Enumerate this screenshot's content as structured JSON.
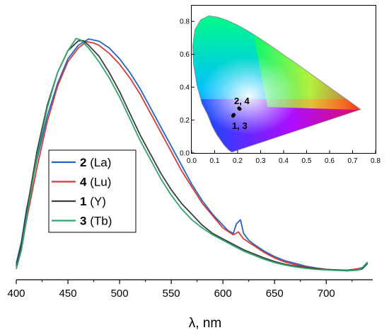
{
  "chart_data": [
    {
      "type": "line",
      "title": "",
      "xlabel": "λ, nm",
      "ylabel": "",
      "xlim": [
        400,
        745
      ],
      "x_ticks": [
        "400",
        "450",
        "500",
        "550",
        "600",
        "650",
        "700"
      ],
      "grid": false,
      "legend": "left, middle",
      "series": [
        {
          "name_num": "2",
          "name_rest": " (La)",
          "color": "#2563c4",
          "points": [
            [
              400,
              0.06
            ],
            [
              405,
              0.14
            ],
            [
              410,
              0.26
            ],
            [
              420,
              0.44
            ],
            [
              430,
              0.6
            ],
            [
              440,
              0.72
            ],
            [
              450,
              0.81
            ],
            [
              460,
              0.86
            ],
            [
              470,
              0.883
            ],
            [
              480,
              0.875
            ],
            [
              490,
              0.85
            ],
            [
              500,
              0.81
            ],
            [
              510,
              0.76
            ],
            [
              520,
              0.7
            ],
            [
              530,
              0.63
            ],
            [
              540,
              0.56
            ],
            [
              550,
              0.49
            ],
            [
              560,
              0.42
            ],
            [
              570,
              0.35
            ],
            [
              580,
              0.29
            ],
            [
              590,
              0.24
            ],
            [
              600,
              0.2
            ],
            [
              605,
              0.18
            ],
            [
              610,
              0.17
            ],
            [
              613,
              0.205
            ],
            [
              617,
              0.22
            ],
            [
              620,
              0.17
            ],
            [
              625,
              0.145
            ],
            [
              630,
              0.13
            ],
            [
              640,
              0.105
            ],
            [
              650,
              0.085
            ],
            [
              660,
              0.07
            ],
            [
              670,
              0.06
            ],
            [
              680,
              0.05
            ],
            [
              690,
              0.043
            ],
            [
              700,
              0.038
            ],
            [
              710,
              0.035
            ],
            [
              720,
              0.033
            ],
            [
              730,
              0.035
            ],
            [
              735,
              0.04
            ],
            [
              740,
              0.06
            ]
          ]
        },
        {
          "name_num": "4",
          "name_rest": " (Lu)",
          "color": "#d63a3a",
          "points": [
            [
              400,
              0.04
            ],
            [
              405,
              0.11
            ],
            [
              410,
              0.22
            ],
            [
              420,
              0.41
            ],
            [
              430,
              0.58
            ],
            [
              440,
              0.71
            ],
            [
              450,
              0.8
            ],
            [
              460,
              0.85
            ],
            [
              468,
              0.873
            ],
            [
              475,
              0.868
            ],
            [
              480,
              0.86
            ],
            [
              490,
              0.83
            ],
            [
              500,
              0.79
            ],
            [
              510,
              0.74
            ],
            [
              520,
              0.68
            ],
            [
              530,
              0.61
            ],
            [
              540,
              0.54
            ],
            [
              550,
              0.47
            ],
            [
              560,
              0.4
            ],
            [
              570,
              0.34
            ],
            [
              580,
              0.28
            ],
            [
              590,
              0.235
            ],
            [
              600,
              0.19
            ],
            [
              610,
              0.165
            ],
            [
              615,
              0.175
            ],
            [
              620,
              0.15
            ],
            [
              630,
              0.125
            ],
            [
              640,
              0.1
            ],
            [
              650,
              0.08
            ],
            [
              660,
              0.065
            ],
            [
              670,
              0.055
            ],
            [
              680,
              0.047
            ],
            [
              690,
              0.042
            ],
            [
              700,
              0.038
            ],
            [
              710,
              0.036
            ],
            [
              720,
              0.035
            ],
            [
              730,
              0.04
            ],
            [
              735,
              0.045
            ],
            [
              740,
              0.06
            ]
          ]
        },
        {
          "name_num": "1",
          "name_rest": " (Y)",
          "color": "#3d3d3d",
          "points": [
            [
              400,
              0.05
            ],
            [
              405,
              0.13
            ],
            [
              410,
              0.25
            ],
            [
              420,
              0.47
            ],
            [
              430,
              0.64
            ],
            [
              440,
              0.76
            ],
            [
              450,
              0.84
            ],
            [
              460,
              0.876
            ],
            [
              465,
              0.877
            ],
            [
              470,
              0.86
            ],
            [
              480,
              0.82
            ],
            [
              490,
              0.76
            ],
            [
              500,
              0.69
            ],
            [
              510,
              0.61
            ],
            [
              520,
              0.53
            ],
            [
              530,
              0.46
            ],
            [
              540,
              0.39
            ],
            [
              550,
              0.33
            ],
            [
              560,
              0.28
            ],
            [
              570,
              0.24
            ],
            [
              580,
              0.2
            ],
            [
              590,
              0.17
            ],
            [
              600,
              0.15
            ],
            [
              610,
              0.13
            ],
            [
              620,
              0.11
            ],
            [
              630,
              0.095
            ],
            [
              640,
              0.08
            ],
            [
              650,
              0.067
            ],
            [
              660,
              0.057
            ],
            [
              670,
              0.05
            ],
            [
              680,
              0.045
            ],
            [
              690,
              0.041
            ],
            [
              700,
              0.038
            ],
            [
              710,
              0.036
            ],
            [
              720,
              0.035
            ],
            [
              730,
              0.035
            ],
            [
              735,
              0.042
            ],
            [
              740,
              0.06
            ]
          ]
        },
        {
          "name_num": "3",
          "name_rest": " (Tb)",
          "color": "#2ea66a",
          "points": [
            [
              400,
              0.04
            ],
            [
              405,
              0.11
            ],
            [
              410,
              0.23
            ],
            [
              420,
              0.45
            ],
            [
              430,
              0.63
            ],
            [
              440,
              0.76
            ],
            [
              450,
              0.84
            ],
            [
              458,
              0.885
            ],
            [
              462,
              0.88
            ],
            [
              470,
              0.85
            ],
            [
              480,
              0.8
            ],
            [
              490,
              0.74
            ],
            [
              500,
              0.67
            ],
            [
              510,
              0.59
            ],
            [
              520,
              0.51
            ],
            [
              530,
              0.44
            ],
            [
              540,
              0.37
            ],
            [
              550,
              0.31
            ],
            [
              560,
              0.26
            ],
            [
              570,
              0.22
            ],
            [
              580,
              0.19
            ],
            [
              590,
              0.165
            ],
            [
              600,
              0.145
            ],
            [
              610,
              0.125
            ],
            [
              620,
              0.105
            ],
            [
              630,
              0.09
            ],
            [
              640,
              0.075
            ],
            [
              650,
              0.063
            ],
            [
              660,
              0.054
            ],
            [
              670,
              0.047
            ],
            [
              680,
              0.042
            ],
            [
              690,
              0.038
            ],
            [
              700,
              0.036
            ],
            [
              710,
              0.034
            ],
            [
              720,
              0.033
            ],
            [
              730,
              0.035
            ],
            [
              735,
              0.045
            ],
            [
              740,
              0.065
            ]
          ]
        }
      ]
    },
    {
      "type": "scatter",
      "title": "",
      "xlabel": "",
      "ylabel": "",
      "xlim": [
        0.0,
        0.8
      ],
      "ylim": [
        0.0,
        0.9
      ],
      "x_ticks": [
        "0.0",
        "0.1",
        "0.2",
        "0.3",
        "0.4",
        "0.5",
        "0.6",
        "0.7",
        "0.8"
      ],
      "y_ticks": [
        "0.0",
        "0.2",
        "0.4",
        "0.6",
        "0.8"
      ],
      "background": "CIE 1931 chromaticity diagram",
      "labels": {
        "upper": "2, 4",
        "lower": "1, 3"
      },
      "points": [
        {
          "label": "2",
          "x": 0.206,
          "y": 0.272
        },
        {
          "label": "4",
          "x": 0.209,
          "y": 0.268
        },
        {
          "label": "1",
          "x": 0.183,
          "y": 0.232
        },
        {
          "label": "3",
          "x": 0.18,
          "y": 0.226
        }
      ]
    }
  ]
}
